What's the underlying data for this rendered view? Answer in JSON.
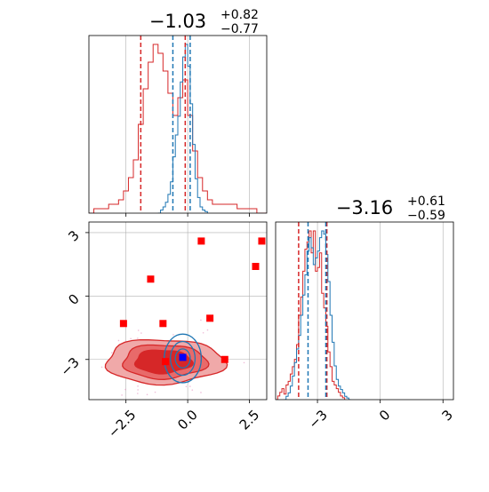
{
  "colors": {
    "red": "#d62728",
    "blue": "#1f77b4",
    "red_fill_light": "#f0a9a9",
    "red_fill_mid": "#e86a6a",
    "red_fill_dark": "#d62728",
    "grid": "#b0b0b0",
    "marker_red": "#ff0000",
    "marker_blue": "#0000ff"
  },
  "chart_data": [
    {
      "type": "histogram",
      "panel": "top-left",
      "title_value": "−1.03",
      "title_sup": "+0.82",
      "title_sub": "−0.77",
      "xlim": [
        -4,
        3.2
      ],
      "grid": true,
      "quantile_lines": {
        "red": [
          -1.9,
          -0.1
        ],
        "blue": [
          -0.6,
          0.1
        ]
      },
      "series": [
        {
          "name": "",
          "color": "red",
          "bin_edges": [
            -4.0,
            -3.8,
            -3.6,
            -3.4,
            -3.2,
            -3.0,
            -2.8,
            -2.6,
            -2.4,
            -2.2,
            -2.0,
            -1.8,
            -1.6,
            -1.4,
            -1.2,
            -1.0,
            -0.8,
            -0.6,
            -0.4,
            -0.2,
            0.0,
            0.2,
            0.4,
            0.6,
            0.8,
            1.0,
            1.2,
            1.4,
            1.6,
            1.8,
            2.0,
            2.2,
            2.4,
            2.6,
            2.8,
            3.0,
            3.2
          ],
          "counts": [
            0,
            1,
            1,
            1,
            2,
            2,
            3,
            5,
            8,
            12,
            20,
            28,
            34,
            38,
            36,
            32,
            27,
            22,
            26,
            30,
            22,
            14,
            8,
            5,
            3,
            2,
            2,
            2,
            2,
            2,
            1,
            1,
            1,
            1,
            0,
            0
          ]
        },
        {
          "name": "",
          "color": "blue",
          "bin_edges": [
            -1.2,
            -1.1,
            -1.0,
            -0.9,
            -0.8,
            -0.7,
            -0.6,
            -0.5,
            -0.4,
            -0.3,
            -0.2,
            -0.1,
            0.0,
            0.1,
            0.2,
            0.3,
            0.4,
            0.5,
            0.6,
            0.7,
            0.8
          ],
          "counts": [
            0,
            2,
            4,
            7,
            12,
            20,
            36,
            50,
            62,
            84,
            100,
            108,
            94,
            70,
            44,
            22,
            10,
            4,
            2,
            1
          ]
        }
      ]
    },
    {
      "type": "scatter",
      "panel": "bottom-left",
      "xlim": [
        -4,
        3.2
      ],
      "ylim": [
        -4.9,
        3.5
      ],
      "xticks": [
        -2.5,
        0.0,
        2.5
      ],
      "yticks": [
        -3,
        0,
        3
      ],
      "xtick_labels": [
        "−2.5",
        "0.0",
        "2.5"
      ],
      "ytick_labels": [
        "−3",
        "0",
        "3"
      ],
      "grid": true,
      "red_points": [
        {
          "x": 0.55,
          "y": 2.6
        },
        {
          "x": 3.0,
          "y": 2.6
        },
        {
          "x": 2.75,
          "y": 1.4
        },
        {
          "x": -1.5,
          "y": 0.8
        },
        {
          "x": -2.6,
          "y": -1.3
        },
        {
          "x": -1.0,
          "y": -1.3
        },
        {
          "x": 0.9,
          "y": -1.05
        },
        {
          "x": 1.5,
          "y": -3.0
        },
        {
          "x": -0.9,
          "y": -3.1
        }
      ],
      "blue_points": [
        {
          "x": -0.2,
          "y": -2.9
        }
      ]
    },
    {
      "type": "histogram",
      "panel": "bottom-right",
      "title_value": "−3.16",
      "title_sup": "+0.61",
      "title_sub": "−0.59",
      "xlim": [
        -5.0,
        3.5
      ],
      "xticks": [
        -3,
        0,
        3
      ],
      "xtick_labels": [
        "−3",
        "0",
        "3"
      ],
      "grid": true,
      "quantile_lines": {
        "red": [
          -3.9,
          -2.55
        ],
        "blue": [
          -3.45,
          -2.6
        ]
      },
      "series": [
        {
          "name": "",
          "color": "red",
          "bin_edges": [
            -5.0,
            -4.9,
            -4.8,
            -4.7,
            -4.6,
            -4.5,
            -4.4,
            -4.3,
            -4.2,
            -4.1,
            -4.0,
            -3.9,
            -3.8,
            -3.7,
            -3.6,
            -3.5,
            -3.4,
            -3.3,
            -3.2,
            -3.1,
            -3.0,
            -2.9,
            -2.8,
            -2.7,
            -2.6,
            -2.5,
            -2.4,
            -2.3,
            -2.2,
            -2.1,
            -2.0,
            -1.9,
            -1.8,
            -1.7
          ],
          "counts": [
            0,
            2,
            4,
            6,
            3,
            8,
            10,
            14,
            18,
            22,
            30,
            46,
            56,
            70,
            82,
            86,
            92,
            80,
            92,
            70,
            72,
            80,
            58,
            50,
            40,
            26,
            18,
            10,
            8,
            6,
            4,
            2,
            1
          ]
        },
        {
          "name": "",
          "color": "blue",
          "bin_edges": [
            -4.6,
            -4.5,
            -4.4,
            -4.3,
            -4.2,
            -4.1,
            -4.0,
            -3.9,
            -3.8,
            -3.7,
            -3.6,
            -3.5,
            -3.4,
            -3.3,
            -3.2,
            -3.1,
            -3.0,
            -2.9,
            -2.8,
            -2.7,
            -2.6,
            -2.5,
            -2.4,
            -2.3,
            -2.2,
            -2.1,
            -2.0,
            -1.9,
            -1.8,
            -1.7,
            -1.6,
            -1.5,
            -1.4
          ],
          "counts": [
            0,
            2,
            4,
            8,
            14,
            22,
            30,
            38,
            50,
            62,
            74,
            88,
            96,
            90,
            80,
            84,
            88,
            96,
            100,
            98,
            86,
            70,
            50,
            34,
            20,
            12,
            8,
            6,
            4,
            2,
            1,
            0
          ]
        }
      ]
    }
  ]
}
